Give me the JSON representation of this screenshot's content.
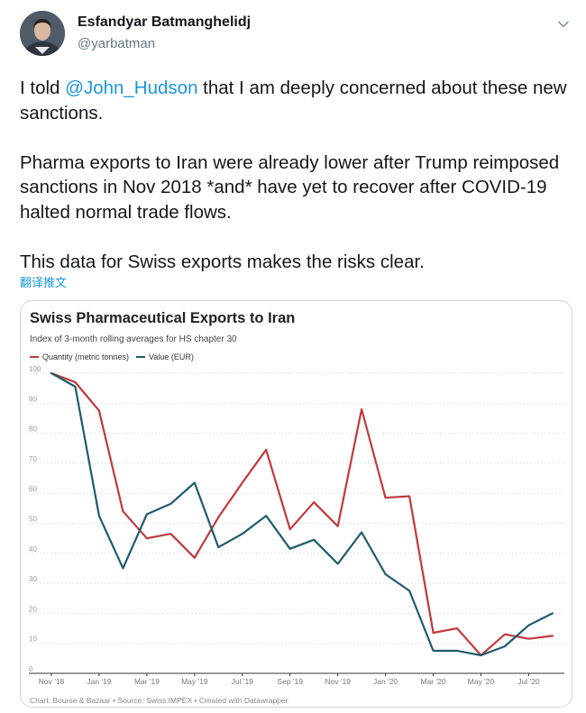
{
  "author": {
    "display_name": "Esfandyar Batmanghelidj",
    "handle": "@yarbatman"
  },
  "tweet": {
    "line1_before": "I told ",
    "mention": "@John_Hudson",
    "line1_after": " that I am deeply concerned about these new sanctions.",
    "paragraph2": "Pharma exports to Iran were already lower after Trump reimposed sanctions in Nov 2018 *and* have yet to recover after COVID-19 halted normal trade flows.",
    "paragraph3": "This data for Swiss exports makes the risks clear.",
    "translate_label": "翻译推文"
  },
  "colors": {
    "quantity": "#c0393b",
    "value": "#1e5b6d",
    "link": "#1b95e0"
  },
  "chart_data": {
    "type": "line",
    "title": "Swiss Pharmaceutical Exports to Iran",
    "subtitle": "Index of 3-month rolling averages for HS chapter 30",
    "footer": "Chart: Bourse & Bazaar • Source: Swiss IMPEX • Created with Datawrapper",
    "x_tick_labels": [
      "Nov '18",
      "Jan '19",
      "Mar '19",
      "May '19",
      "Jul '19",
      "Sep '19",
      "Nov '19",
      "Jan '20",
      "Mar '20",
      "May '20",
      "Jul '20"
    ],
    "y_ticks": [
      0,
      10,
      20,
      30,
      40,
      50,
      60,
      70,
      80,
      90,
      100
    ],
    "ylim": [
      0,
      100
    ],
    "series": [
      {
        "name": "Quantity (metric tonnes)",
        "color": "#c0393b",
        "values": [
          100,
          97,
          87.5,
          54,
          45,
          46.5,
          38.5,
          52,
          63.5,
          74.5,
          48,
          57,
          49,
          88,
          58.5,
          59,
          13.5,
          15,
          6,
          13,
          11.5,
          12.5
        ]
      },
      {
        "name": "Value (EUR)",
        "color": "#1e5b6d",
        "values": [
          100,
          95.5,
          52.5,
          35,
          53,
          56.5,
          63.5,
          42,
          46.5,
          52.5,
          41.5,
          44.5,
          36.5,
          47,
          33,
          27.5,
          7.5,
          7.5,
          6,
          9,
          16,
          20
        ]
      }
    ]
  }
}
